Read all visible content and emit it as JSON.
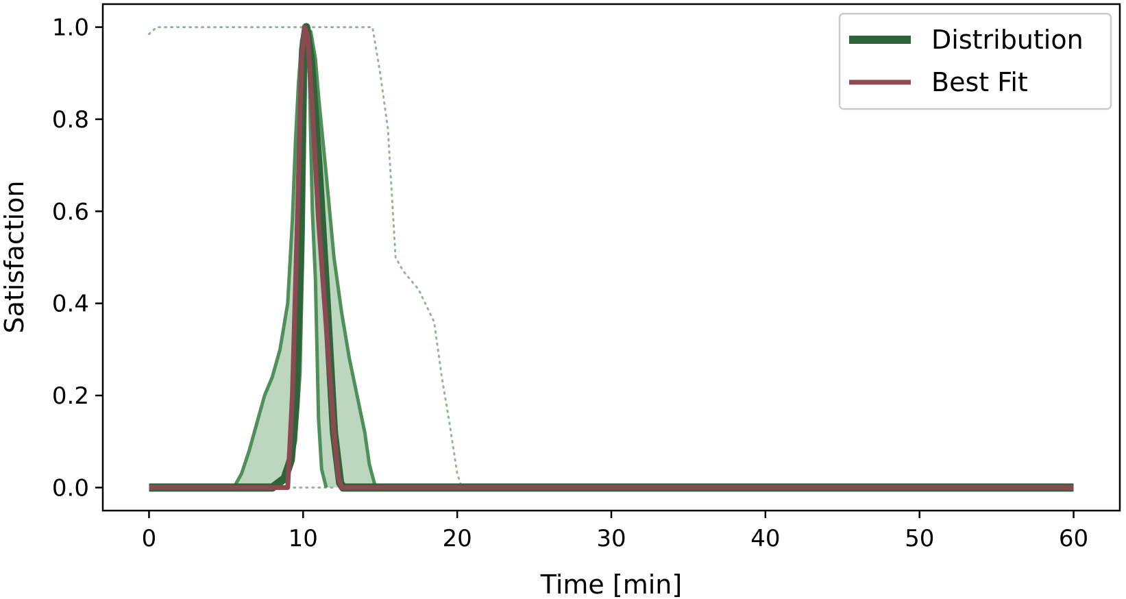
{
  "chart_data": {
    "type": "line",
    "xlabel": "Time [min]",
    "ylabel": "Satisfaction",
    "xlim": [
      -3,
      63
    ],
    "ylim": [
      -0.05,
      1.05
    ],
    "xticks": [
      0,
      10,
      20,
      30,
      40,
      50,
      60
    ],
    "yticks": [
      0.0,
      0.2,
      0.4,
      0.6,
      0.8,
      1.0
    ],
    "xtick_labels": [
      "0",
      "10",
      "20",
      "30",
      "40",
      "50",
      "60"
    ],
    "ytick_labels": [
      "0.0",
      "0.2",
      "0.4",
      "0.6",
      "0.8",
      "1.0"
    ],
    "grid": false,
    "legend_position": "top-right",
    "legend": [
      {
        "label": "Distribution",
        "color": "#2e6437"
      },
      {
        "label": "Best Fit",
        "color": "#8b4a52"
      }
    ],
    "colors": {
      "distribution_line": "#2e6437",
      "band_edge": "#4f8f59",
      "band_fill": "#bdd6be",
      "dotted_bound": "#8fb896",
      "best_fit": "#8b4a52"
    },
    "series": [
      {
        "role": "dotted_upper_bound",
        "points": [
          [
            0,
            0.985
          ],
          [
            0.5,
            1.0
          ],
          [
            14.5,
            1.0
          ],
          [
            15,
            0.9
          ],
          [
            15.5,
            0.78
          ],
          [
            16,
            0.5
          ],
          [
            16.5,
            0.47
          ],
          [
            17.5,
            0.43
          ],
          [
            18.5,
            0.36
          ],
          [
            19,
            0.24
          ],
          [
            19.5,
            0.14
          ],
          [
            20,
            0.03
          ],
          [
            20.3,
            0.0
          ]
        ]
      },
      {
        "role": "dotted_lower_bound",
        "points": [
          [
            9,
            0.0
          ],
          [
            12,
            0.0
          ]
        ]
      },
      {
        "role": "band_outer_upper",
        "points": [
          [
            5.5,
            0.0
          ],
          [
            6,
            0.03
          ],
          [
            6.5,
            0.08
          ],
          [
            7,
            0.14
          ],
          [
            7.5,
            0.2
          ],
          [
            8,
            0.24
          ],
          [
            8.5,
            0.3
          ],
          [
            9,
            0.4
          ],
          [
            9.3,
            0.58
          ],
          [
            9.5,
            0.75
          ],
          [
            9.7,
            0.88
          ],
          [
            9.9,
            0.97
          ],
          [
            10.1,
            1.0
          ],
          [
            10.5,
            0.99
          ],
          [
            10.8,
            0.93
          ],
          [
            11,
            0.85
          ],
          [
            11.5,
            0.68
          ],
          [
            12,
            0.5
          ],
          [
            12.5,
            0.38
          ],
          [
            13,
            0.28
          ],
          [
            13.5,
            0.2
          ],
          [
            14,
            0.12
          ],
          [
            14.3,
            0.05
          ],
          [
            14.7,
            0.0
          ]
        ]
      },
      {
        "role": "band_inner_lower",
        "points": [
          [
            8,
            0.0
          ],
          [
            9,
            0.03
          ],
          [
            9.5,
            0.1
          ],
          [
            9.8,
            0.25
          ],
          [
            10,
            0.55
          ],
          [
            10.2,
            1.0
          ],
          [
            10.4,
            0.9
          ],
          [
            10.6,
            0.6
          ],
          [
            10.8,
            0.45
          ],
          [
            11,
            0.15
          ],
          [
            11.2,
            0.04
          ],
          [
            11.5,
            0.0
          ]
        ]
      },
      {
        "role": "distribution",
        "points": [
          [
            0,
            0.0
          ],
          [
            8,
            0.0
          ],
          [
            8.8,
            0.02
          ],
          [
            9.2,
            0.06
          ],
          [
            9.5,
            0.18
          ],
          [
            9.8,
            0.5
          ],
          [
            10.0,
            0.95
          ],
          [
            10.2,
            1.0
          ],
          [
            10.5,
            0.93
          ],
          [
            11,
            0.7
          ],
          [
            11.5,
            0.42
          ],
          [
            12,
            0.12
          ],
          [
            12.4,
            0.01
          ],
          [
            12.6,
            0.0
          ],
          [
            60,
            0.0
          ]
        ]
      },
      {
        "role": "best_fit",
        "points": [
          [
            0,
            0.0
          ],
          [
            9.0,
            0.0
          ],
          [
            9.3,
            0.2
          ],
          [
            9.6,
            0.55
          ],
          [
            9.9,
            0.93
          ],
          [
            10.1,
            1.0
          ],
          [
            10.3,
            0.98
          ],
          [
            10.6,
            0.82
          ],
          [
            11,
            0.58
          ],
          [
            11.5,
            0.35
          ],
          [
            12,
            0.12
          ],
          [
            12.3,
            0.02
          ],
          [
            12.5,
            0.0
          ],
          [
            60,
            0.0
          ]
        ]
      }
    ]
  }
}
